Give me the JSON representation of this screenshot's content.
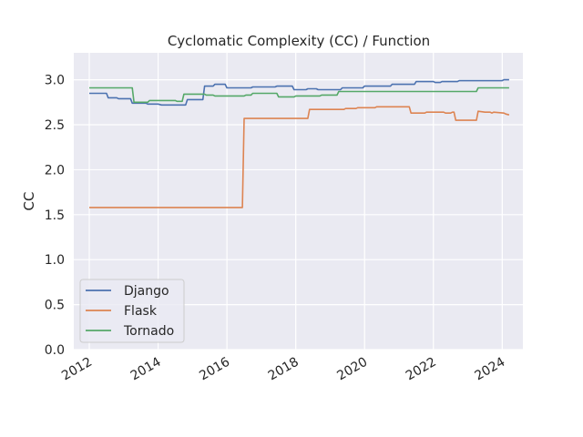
{
  "chart_data": {
    "type": "line",
    "title": "Cyclomatic Complexity (CC) / Function",
    "xlabel": "",
    "ylabel": "CC",
    "xlim": [
      2011.55,
      2024.6
    ],
    "ylim": [
      0,
      3.3
    ],
    "x_ticks": [
      2012,
      2014,
      2016,
      2018,
      2020,
      2022,
      2024
    ],
    "x_tick_labels": [
      "2012",
      "2014",
      "2016",
      "2018",
      "2020",
      "2022",
      "2024"
    ],
    "y_ticks": [
      0,
      0.5,
      1.0,
      1.5,
      2.0,
      2.5,
      3.0
    ],
    "y_tick_labels": [
      "0.0",
      "0.5",
      "1.0",
      "1.5",
      "2.0",
      "2.5",
      "3.0"
    ],
    "grid": true,
    "legend_position": "lower-left",
    "series": [
      {
        "name": "Django",
        "color": "#4c72b0",
        "points": [
          [
            2012.0,
            2.85
          ],
          [
            2012.5,
            2.85
          ],
          [
            2012.55,
            2.8
          ],
          [
            2012.8,
            2.8
          ],
          [
            2012.85,
            2.79
          ],
          [
            2013.2,
            2.79
          ],
          [
            2013.25,
            2.74
          ],
          [
            2013.65,
            2.74
          ],
          [
            2013.7,
            2.73
          ],
          [
            2014.0,
            2.73
          ],
          [
            2014.1,
            2.72
          ],
          [
            2014.8,
            2.72
          ],
          [
            2014.85,
            2.78
          ],
          [
            2015.3,
            2.78
          ],
          [
            2015.35,
            2.93
          ],
          [
            2015.6,
            2.93
          ],
          [
            2015.65,
            2.95
          ],
          [
            2015.95,
            2.95
          ],
          [
            2016.0,
            2.91
          ],
          [
            2016.7,
            2.91
          ],
          [
            2016.75,
            2.92
          ],
          [
            2017.4,
            2.92
          ],
          [
            2017.45,
            2.93
          ],
          [
            2017.9,
            2.93
          ],
          [
            2017.95,
            2.89
          ],
          [
            2018.3,
            2.89
          ],
          [
            2018.35,
            2.9
          ],
          [
            2018.6,
            2.9
          ],
          [
            2018.65,
            2.89
          ],
          [
            2019.3,
            2.89
          ],
          [
            2019.35,
            2.91
          ],
          [
            2019.95,
            2.91
          ],
          [
            2020.0,
            2.93
          ],
          [
            2020.75,
            2.93
          ],
          [
            2020.8,
            2.95
          ],
          [
            2021.45,
            2.95
          ],
          [
            2021.5,
            2.98
          ],
          [
            2022.0,
            2.98
          ],
          [
            2022.05,
            2.97
          ],
          [
            2022.2,
            2.97
          ],
          [
            2022.25,
            2.98
          ],
          [
            2022.7,
            2.98
          ],
          [
            2022.75,
            2.99
          ],
          [
            2024.0,
            2.99
          ],
          [
            2024.05,
            3.0
          ],
          [
            2024.2,
            3.0
          ]
        ]
      },
      {
        "name": "Flask",
        "color": "#dd8452",
        "points": [
          [
            2012.0,
            1.58
          ],
          [
            2016.45,
            1.58
          ],
          [
            2016.5,
            2.57
          ],
          [
            2018.35,
            2.57
          ],
          [
            2018.4,
            2.67
          ],
          [
            2019.4,
            2.67
          ],
          [
            2019.45,
            2.68
          ],
          [
            2019.75,
            2.68
          ],
          [
            2019.8,
            2.69
          ],
          [
            2020.3,
            2.69
          ],
          [
            2020.35,
            2.7
          ],
          [
            2021.3,
            2.7
          ],
          [
            2021.35,
            2.63
          ],
          [
            2021.75,
            2.63
          ],
          [
            2021.8,
            2.64
          ],
          [
            2022.3,
            2.64
          ],
          [
            2022.35,
            2.63
          ],
          [
            2022.5,
            2.63
          ],
          [
            2022.55,
            2.64
          ],
          [
            2022.6,
            2.64
          ],
          [
            2022.65,
            2.55
          ],
          [
            2023.25,
            2.55
          ],
          [
            2023.3,
            2.65
          ],
          [
            2023.5,
            2.64
          ],
          [
            2023.65,
            2.64
          ],
          [
            2023.7,
            2.63
          ],
          [
            2023.75,
            2.64
          ],
          [
            2024.05,
            2.63
          ],
          [
            2024.1,
            2.62
          ],
          [
            2024.2,
            2.61
          ]
        ]
      },
      {
        "name": "Tornado",
        "color": "#55a868",
        "points": [
          [
            2012.0,
            2.91
          ],
          [
            2013.25,
            2.91
          ],
          [
            2013.3,
            2.75
          ],
          [
            2013.7,
            2.75
          ],
          [
            2013.75,
            2.77
          ],
          [
            2014.5,
            2.77
          ],
          [
            2014.55,
            2.76
          ],
          [
            2014.7,
            2.76
          ],
          [
            2014.75,
            2.84
          ],
          [
            2015.35,
            2.84
          ],
          [
            2015.4,
            2.83
          ],
          [
            2015.6,
            2.83
          ],
          [
            2015.65,
            2.82
          ],
          [
            2016.5,
            2.82
          ],
          [
            2016.55,
            2.83
          ],
          [
            2016.7,
            2.83
          ],
          [
            2016.75,
            2.85
          ],
          [
            2017.45,
            2.85
          ],
          [
            2017.5,
            2.81
          ],
          [
            2017.95,
            2.81
          ],
          [
            2018.0,
            2.82
          ],
          [
            2018.7,
            2.82
          ],
          [
            2018.75,
            2.83
          ],
          [
            2019.2,
            2.83
          ],
          [
            2019.25,
            2.87
          ],
          [
            2023.25,
            2.87
          ],
          [
            2023.3,
            2.91
          ],
          [
            2024.2,
            2.91
          ]
        ]
      }
    ]
  }
}
